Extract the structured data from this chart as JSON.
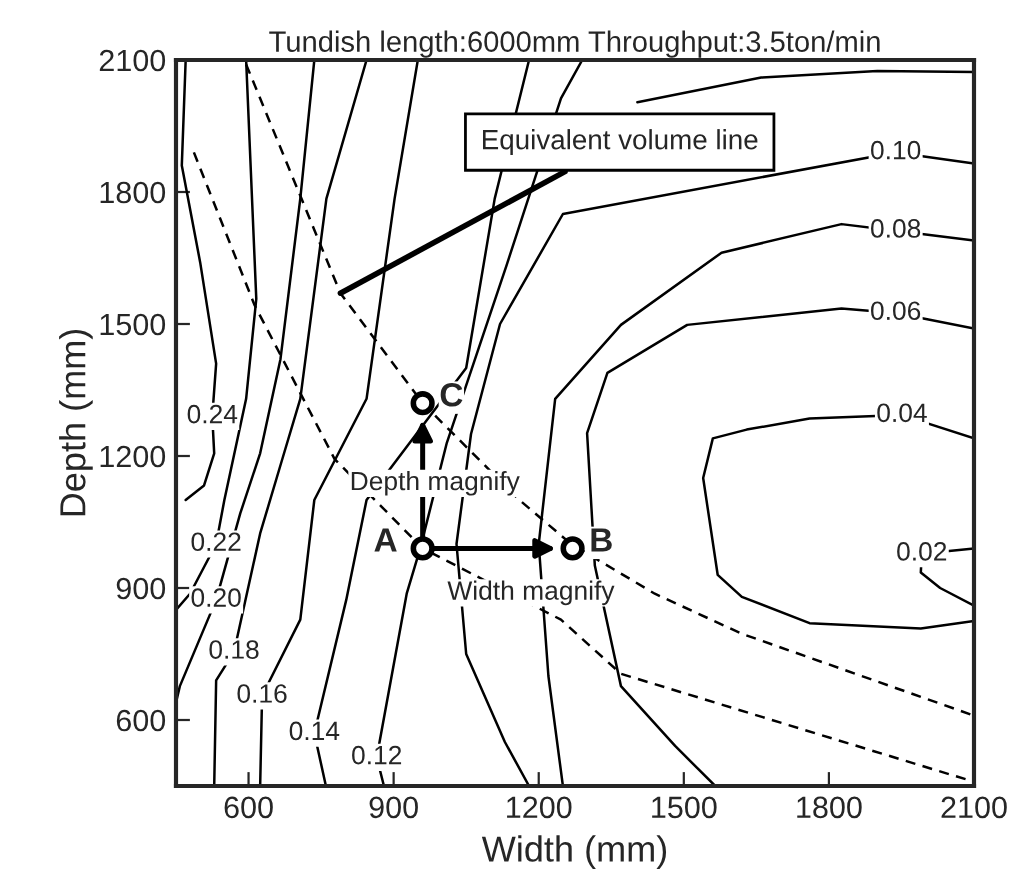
{
  "chart_data": {
    "type": "line",
    "title": "Tundish length:6000mm Throughput:3.5ton/min",
    "xlabel": "Width (mm)",
    "ylabel": "Depth (mm)",
    "xlim": [
      450,
      2100
    ],
    "ylim": [
      450,
      2100
    ],
    "xticks": [
      600,
      900,
      1200,
      1500,
      1800,
      2100
    ],
    "yticks": [
      600,
      900,
      1200,
      1500,
      1800,
      2100
    ],
    "grid": false,
    "line_style": "solid",
    "series": [
      {
        "color": "#000000",
        "x": [
          470,
          462,
          500,
          533,
          525,
          529,
          508,
          470
        ],
        "values": [
          2100,
          1860,
          1640,
          1410,
          1290,
          1206,
          1133,
          1100
        ]
      },
      {
        "color": "#000000",
        "x": [
          595,
          616,
          595,
          550,
          533,
          479,
          450
        ],
        "values": [
          2100,
          1557,
          1330,
          1100,
          1000,
          887,
          850
        ]
      },
      {
        "color": "#000000",
        "x": [
          736,
          707,
          666,
          624,
          583,
          533,
          458,
          450
        ],
        "values": [
          2100,
          1785,
          1420,
          1206,
          1070,
          873,
          677,
          640
        ]
      },
      {
        "color": "#000000",
        "x": [
          844,
          761,
          707,
          666,
          624,
          570,
          533,
          529
        ],
        "values": [
          2100,
          1785,
          1330,
          1179,
          1024,
          755,
          690,
          450
        ]
      },
      {
        "color": "#000000",
        "x": [
          950,
          902,
          844,
          736,
          707,
          628,
          624
        ],
        "values": [
          2100,
          1785,
          1330,
          1100,
          828,
          655,
          450
        ]
      },
      {
        "color": "#000000",
        "x": [
          1180,
          1109,
          1050,
          844,
          802,
          736,
          760
        ],
        "values": [
          2100,
          1785,
          1400,
          1100,
          873,
          570,
          450
        ]
      },
      {
        "color": "#000000",
        "x": [
          1290,
          1246,
          1134,
          1010,
          955,
          927,
          865,
          880
        ],
        "values": [
          2100,
          2013,
          1635,
          1230,
          990,
          887,
          515,
          450
        ]
      },
      {
        "color": "#000000",
        "x": [
          1404,
          1660,
          1900,
          2100
        ],
        "values": [
          2004,
          2060,
          2075,
          2073
        ]
      },
      {
        "color": "#000000",
        "x": [
          2100,
          1938,
          1700,
          1450,
          1250,
          1120,
          1060,
          1030,
          1050,
          1130,
          1180
        ],
        "values": [
          1865,
          1890,
          null,
          null,
          1750,
          1500,
          1250,
          1000,
          750,
          550,
          450
        ]
      },
      {
        "color": "#000000",
        "x": [
          2100,
          1938,
          1826,
          1578,
          1370,
          1234,
          1200,
          1220,
          1250
        ],
        "values": [
          1690,
          1712,
          1727,
          1662,
          1498,
          1330,
          1000,
          700,
          450
        ]
      },
      {
        "color": "#000000",
        "x": [
          2100,
          1938,
          1826,
          1507,
          1342,
          1300,
          1316,
          1370,
          1482,
          1565
        ],
        "values": [
          1490,
          1525,
          1535,
          1498,
          1389,
          1252,
          951,
          677,
          541,
          450
        ]
      },
      {
        "color": "#000000",
        "x": [
          2100,
          1951,
          1760,
          1630,
          1560,
          1540,
          1570,
          1620,
          1760,
          1990,
          2100
        ],
        "values": [
          1240,
          1293,
          1285,
          1260,
          1240,
          1150,
          930,
          880,
          820,
          808,
          825
        ]
      },
      {
        "color": "#000000",
        "x": [
          2100,
          1992,
          1990,
          2030,
          2100
        ],
        "values": [
          990,
          978,
          935,
          900,
          860
        ]
      },
      {
        "color": "#000000",
        "line_style": "dashed",
        "x": [
          595,
          790,
          960,
          1160,
          1267,
          1440,
          1620,
          2100
        ],
        "values": [
          2090,
          1570,
          1320,
          1100,
          1000,
          887,
          796,
          610
        ]
      },
      {
        "color": "#000000",
        "line_style": "dashed",
        "x": [
          487,
          612,
          707,
          778,
          960,
          1246,
          1370,
          2063,
          2100
        ],
        "values": [
          1890,
          1544,
          1343,
          1193,
          990,
          828,
          705,
          472,
          460
        ]
      },
      {
        "type": "scatter",
        "marker": "circle",
        "color": "#000000",
        "x": [
          960,
          960,
          1270
        ],
        "values": [
          990,
          1320,
          990
        ],
        "value_labels": [
          "A",
          "C",
          "B"
        ]
      }
    ],
    "annotations": [
      {
        "text": "0.24",
        "x": 525,
        "y": 1290
      },
      {
        "text": "0.22",
        "x": 533,
        "y": 1000
      },
      {
        "text": "0.20",
        "x": 533,
        "y": 873
      },
      {
        "text": "0.18",
        "x": 570,
        "y": 755
      },
      {
        "text": "0.16",
        "x": 628,
        "y": 655
      },
      {
        "text": "0.14",
        "x": 736,
        "y": 570
      },
      {
        "text": "0.12",
        "x": 865,
        "y": 515
      },
      {
        "text": "0.10",
        "x": 1938,
        "y": 1890
      },
      {
        "text": "0.08",
        "x": 1938,
        "y": 1712
      },
      {
        "text": "0.06",
        "x": 1938,
        "y": 1525
      },
      {
        "text": "0.04",
        "x": 1951,
        "y": 1293
      },
      {
        "text": "0.02",
        "x": 1992,
        "y": 978
      },
      {
        "text": "Depth magnify",
        "x": 985,
        "y": 1138
      },
      "Width magnify",
      {
        "text": "Equivalent volume line",
        "x": 790,
        "y": 1570
      }
    ]
  }
}
